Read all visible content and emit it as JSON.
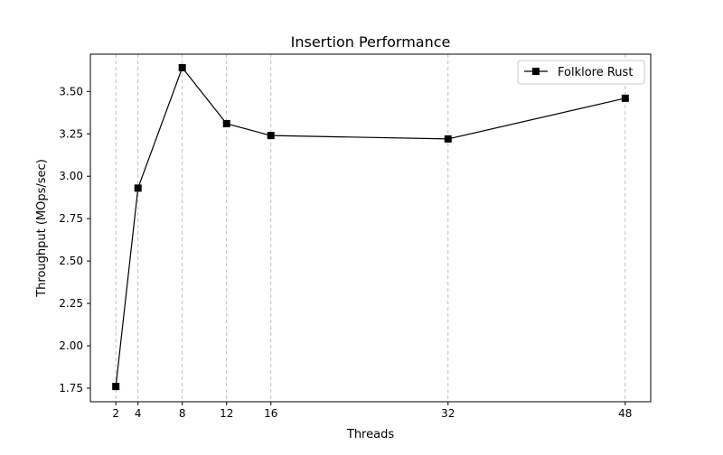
{
  "chart_data": {
    "type": "line",
    "title": "Insertion Performance",
    "xlabel": "Threads",
    "ylabel": "Throughput (MOps/sec)",
    "x": [
      2,
      4,
      8,
      12,
      16,
      32,
      48
    ],
    "x_ticks": [
      "2",
      "4",
      "8",
      "12",
      "16",
      "32",
      "48"
    ],
    "y_ticks": [
      "1.75",
      "2.00",
      "2.25",
      "2.50",
      "2.75",
      "3.00",
      "3.25",
      "3.50"
    ],
    "y_tick_values": [
      1.75,
      2.0,
      2.25,
      2.5,
      2.75,
      3.0,
      3.25,
      3.5
    ],
    "xlim": [
      -0.3,
      50.3
    ],
    "ylim": [
      1.67,
      3.72
    ],
    "grid": "vertical-dashed",
    "legend_position": "top-right",
    "series": [
      {
        "name": "Folklore Rust",
        "marker": "square",
        "color": "#000000",
        "values": [
          1.76,
          2.93,
          3.64,
          3.31,
          3.24,
          3.22,
          3.46
        ]
      }
    ]
  }
}
